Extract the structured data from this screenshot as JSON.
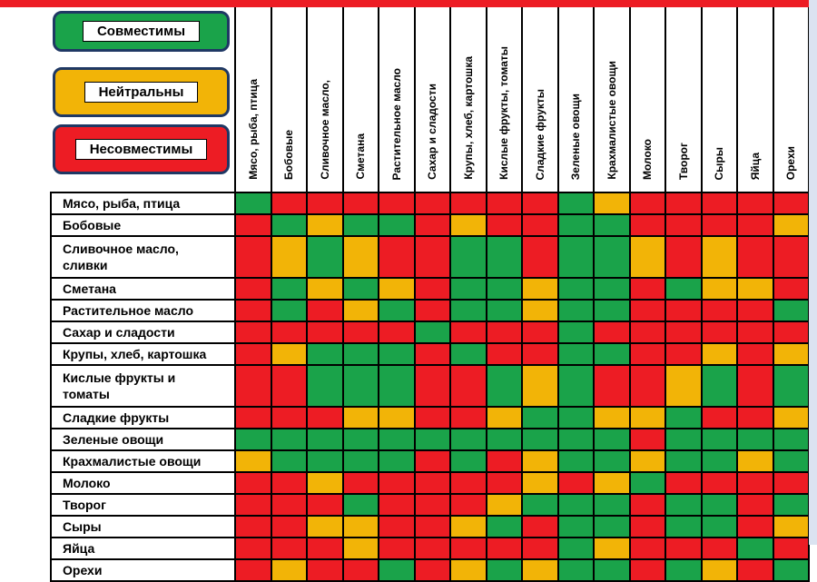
{
  "page": {
    "top_strip_color": "#ED1C24",
    "right_strip_color": "#dbe3f1",
    "grid_line_color": "#000000"
  },
  "legend": {
    "border_color": "#1F3864",
    "items": [
      {
        "key": "C",
        "label": "Совместимы",
        "color": "#1AA34A"
      },
      {
        "key": "N",
        "label": "Нейтральны",
        "color": "#F2B407"
      },
      {
        "key": "X",
        "label": "Несовместимы",
        "color": "#ED1C24"
      }
    ]
  },
  "chart_data": {
    "type": "heatmap",
    "title": "",
    "legend": {
      "C": "Совместимы",
      "N": "Нейтральны",
      "X": "Несовместимы"
    },
    "columns": [
      "Мясо, рыба, птица",
      "Бобовые",
      "Сливочное масло,",
      "Сметана",
      "Растительное масло",
      "Сахар и сладости",
      "Крупы, хлеб, картошка",
      "Кислые фрукты, томаты",
      "Сладкие фрукты",
      "Зеленые овощи",
      "Крахмалистые овощи",
      "Молоко",
      "Творог",
      "Сыры",
      "Яйца",
      "Орехи"
    ],
    "rows": [
      "Мясо, рыба, птица",
      "Бобовые",
      "Сливочное масло,\nсливки",
      "Сметана",
      "Растительное масло",
      "Сахар и сладости",
      "Крупы, хлеб, картошка",
      "Кислые фрукты и\nтоматы",
      "Сладкие фрукты",
      "Зеленые овощи",
      "Крахмалистые овощи",
      "Молоко",
      "Творог",
      "Сыры",
      "Яйца",
      "Орехи"
    ],
    "values": [
      [
        "C",
        "X",
        "X",
        "X",
        "X",
        "X",
        "X",
        "X",
        "X",
        "C",
        "N",
        "X",
        "X",
        "X",
        "X",
        "X"
      ],
      [
        "X",
        "C",
        "N",
        "C",
        "C",
        "X",
        "N",
        "X",
        "X",
        "C",
        "C",
        "X",
        "X",
        "X",
        "X",
        "N"
      ],
      [
        "X",
        "N",
        "C",
        "N",
        "X",
        "X",
        "C",
        "C",
        "X",
        "C",
        "C",
        "N",
        "X",
        "N",
        "X",
        "X"
      ],
      [
        "X",
        "C",
        "N",
        "C",
        "N",
        "X",
        "C",
        "C",
        "N",
        "C",
        "C",
        "X",
        "C",
        "N",
        "N",
        "X"
      ],
      [
        "X",
        "C",
        "X",
        "N",
        "C",
        "X",
        "C",
        "C",
        "N",
        "C",
        "C",
        "X",
        "X",
        "X",
        "X",
        "C"
      ],
      [
        "X",
        "X",
        "X",
        "X",
        "X",
        "C",
        "X",
        "X",
        "X",
        "C",
        "X",
        "X",
        "X",
        "X",
        "X",
        "X"
      ],
      [
        "X",
        "N",
        "C",
        "C",
        "C",
        "X",
        "C",
        "X",
        "X",
        "C",
        "C",
        "X",
        "X",
        "N",
        "X",
        "N"
      ],
      [
        "X",
        "X",
        "C",
        "C",
        "C",
        "X",
        "X",
        "C",
        "N",
        "C",
        "X",
        "X",
        "N",
        "C",
        "X",
        "C"
      ],
      [
        "X",
        "X",
        "X",
        "N",
        "N",
        "X",
        "X",
        "N",
        "C",
        "C",
        "N",
        "N",
        "C",
        "X",
        "X",
        "N"
      ],
      [
        "C",
        "C",
        "C",
        "C",
        "C",
        "C",
        "C",
        "C",
        "C",
        "C",
        "C",
        "X",
        "C",
        "C",
        "C",
        "C"
      ],
      [
        "N",
        "C",
        "C",
        "C",
        "C",
        "X",
        "C",
        "X",
        "N",
        "C",
        "C",
        "N",
        "C",
        "C",
        "N",
        "C"
      ],
      [
        "X",
        "X",
        "N",
        "X",
        "X",
        "X",
        "X",
        "X",
        "N",
        "X",
        "N",
        "C",
        "X",
        "X",
        "X",
        "X"
      ],
      [
        "X",
        "X",
        "X",
        "C",
        "X",
        "X",
        "X",
        "N",
        "C",
        "C",
        "C",
        "X",
        "C",
        "C",
        "X",
        "C"
      ],
      [
        "X",
        "X",
        "N",
        "N",
        "X",
        "X",
        "N",
        "C",
        "X",
        "C",
        "C",
        "X",
        "C",
        "C",
        "X",
        "N"
      ],
      [
        "X",
        "X",
        "X",
        "N",
        "X",
        "X",
        "X",
        "X",
        "X",
        "C",
        "N",
        "X",
        "X",
        "X",
        "C",
        "X"
      ],
      [
        "X",
        "N",
        "X",
        "X",
        "C",
        "X",
        "N",
        "C",
        "N",
        "C",
        "C",
        "X",
        "C",
        "N",
        "X",
        "C"
      ]
    ]
  }
}
